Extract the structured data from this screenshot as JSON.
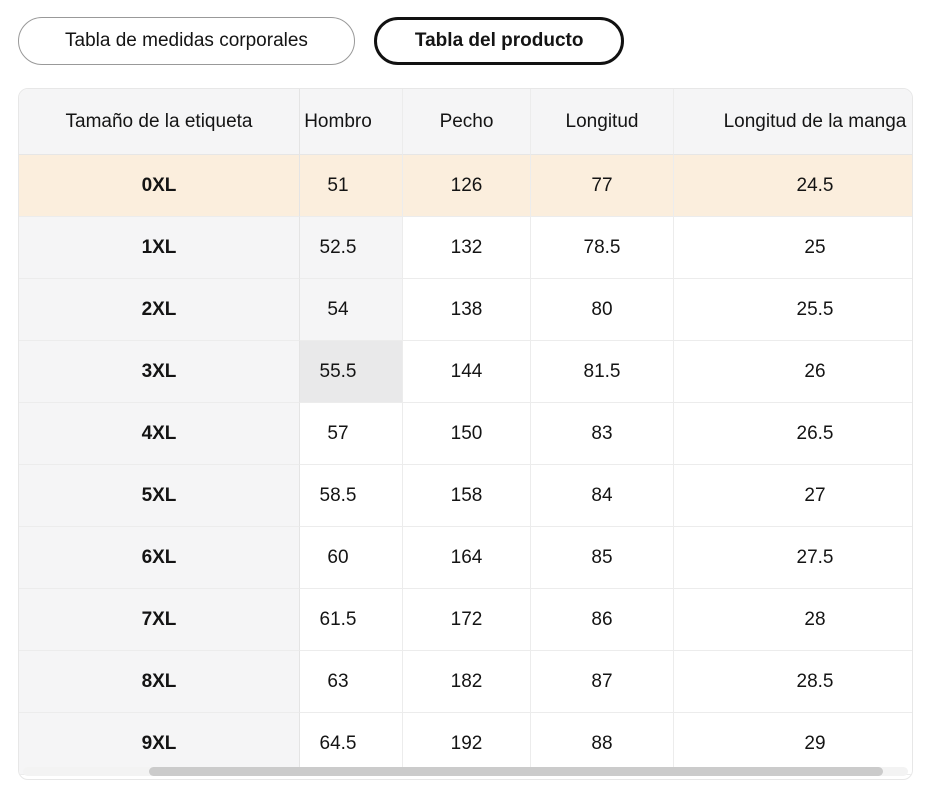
{
  "tabs": [
    {
      "label": "Tabla de medidas corporales",
      "active": false
    },
    {
      "label": "Tabla del producto",
      "active": true
    }
  ],
  "table": {
    "columns": [
      "Tamaño de la etiqueta",
      "Hombro",
      "Pecho",
      "Longitud",
      "Longitud de la manga"
    ],
    "rows": [
      {
        "label": "0XL",
        "values": [
          "51",
          "126",
          "77",
          "24.5"
        ]
      },
      {
        "label": "1XL",
        "values": [
          "52.5",
          "132",
          "78.5",
          "25"
        ]
      },
      {
        "label": "2XL",
        "values": [
          "54",
          "138",
          "80",
          "25.5"
        ]
      },
      {
        "label": "3XL",
        "values": [
          "55.5",
          "144",
          "81.5",
          "26"
        ]
      },
      {
        "label": "4XL",
        "values": [
          "57",
          "150",
          "83",
          "26.5"
        ]
      },
      {
        "label": "5XL",
        "values": [
          "58.5",
          "158",
          "84",
          "27"
        ]
      },
      {
        "label": "6XL",
        "values": [
          "60",
          "164",
          "85",
          "27.5"
        ]
      },
      {
        "label": "7XL",
        "values": [
          "61.5",
          "172",
          "86",
          "28"
        ]
      },
      {
        "label": "8XL",
        "values": [
          "63",
          "182",
          "87",
          "28.5"
        ]
      },
      {
        "label": "9XL",
        "values": [
          "64.5",
          "192",
          "88",
          "29"
        ]
      }
    ],
    "highlighted_row": "0XL",
    "hovered_cell": {
      "row": "3XL",
      "column": "Hombro"
    }
  },
  "colors": {
    "highlight_row_bg": "#fbeedd",
    "header_bg": "#f5f5f6",
    "sticky_column_bg": "#f5f5f6",
    "trace_cell_bg": "#f5f5f6",
    "hover_cell_bg": "#e9e9ea",
    "active_tab_border": "#111111",
    "inactive_tab_border": "#999999",
    "divider": "#ececec",
    "scrollbar_thumb": "#cbcbcb"
  }
}
